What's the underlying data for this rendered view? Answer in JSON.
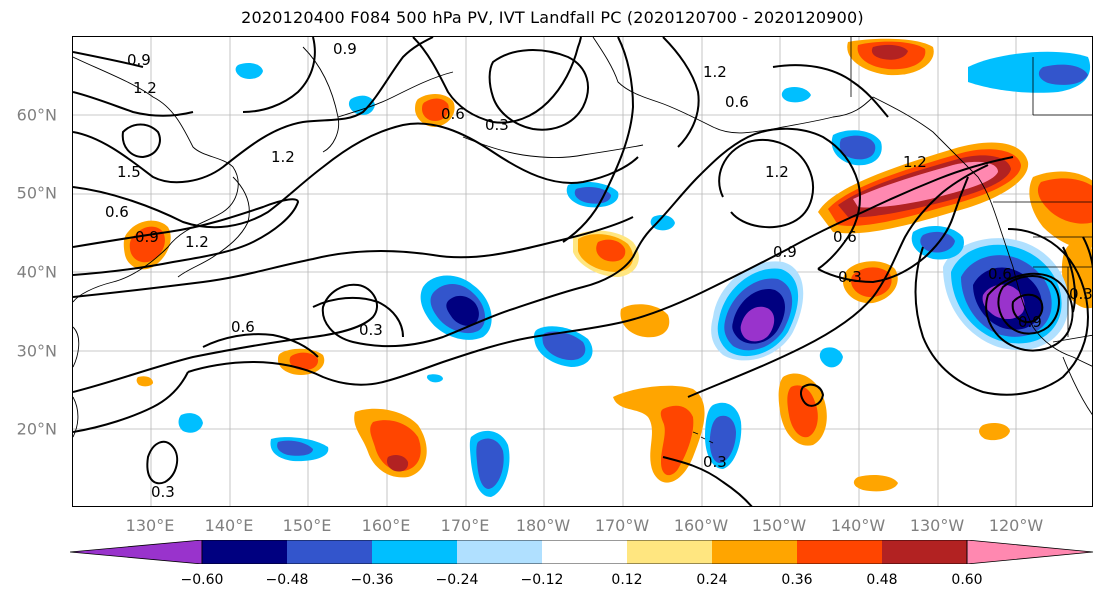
{
  "title": "2020120400 F084 500 hPa PV, IVT Landfall PC (2020120700 - 2020120900)",
  "lat_labels": [
    "60°N",
    "50°N",
    "40°N",
    "30°N",
    "20°N"
  ],
  "lon_labels": [
    "130°E",
    "140°E",
    "150°E",
    "160°E",
    "170°E",
    "180°W",
    "170°W",
    "160°W",
    "150°W",
    "140°W",
    "130°W",
    "120°W"
  ],
  "contour_labels": [
    "0.9",
    "0.9",
    "1.2",
    "1.5",
    "0.6",
    "0.9",
    "1.2",
    "1.2",
    "0.6",
    "0.3",
    "0.3",
    "0.6",
    "1.2",
    "1.2",
    "0.6",
    "1.2",
    "0.9",
    "0.6",
    "0.3",
    "0.3",
    "0.6",
    "0.9",
    "0.3",
    "0.3"
  ],
  "colorbar": {
    "labels": [
      "−0.60",
      "−0.48",
      "−0.36",
      "−0.24",
      "−0.12",
      "0.12",
      "0.24",
      "0.36",
      "0.48",
      "0.60"
    ],
    "colors": [
      "#9933cc",
      "#000080",
      "#3355cc",
      "#00bfff",
      "#b0e0ff",
      "#ffffff",
      "#ffe680",
      "#ffa500",
      "#ff4500",
      "#b22222",
      "#ff88b0"
    ]
  },
  "fill_colors": {
    "pink": "#ff88b0",
    "darkred": "#b22222",
    "red": "#ff4500",
    "orange": "#ffa500",
    "yellow": "#ffe680",
    "lightblue": "#b0e0ff",
    "cyan": "#00bfff",
    "blue": "#3355cc",
    "navy": "#000080",
    "purple": "#9933cc"
  }
}
